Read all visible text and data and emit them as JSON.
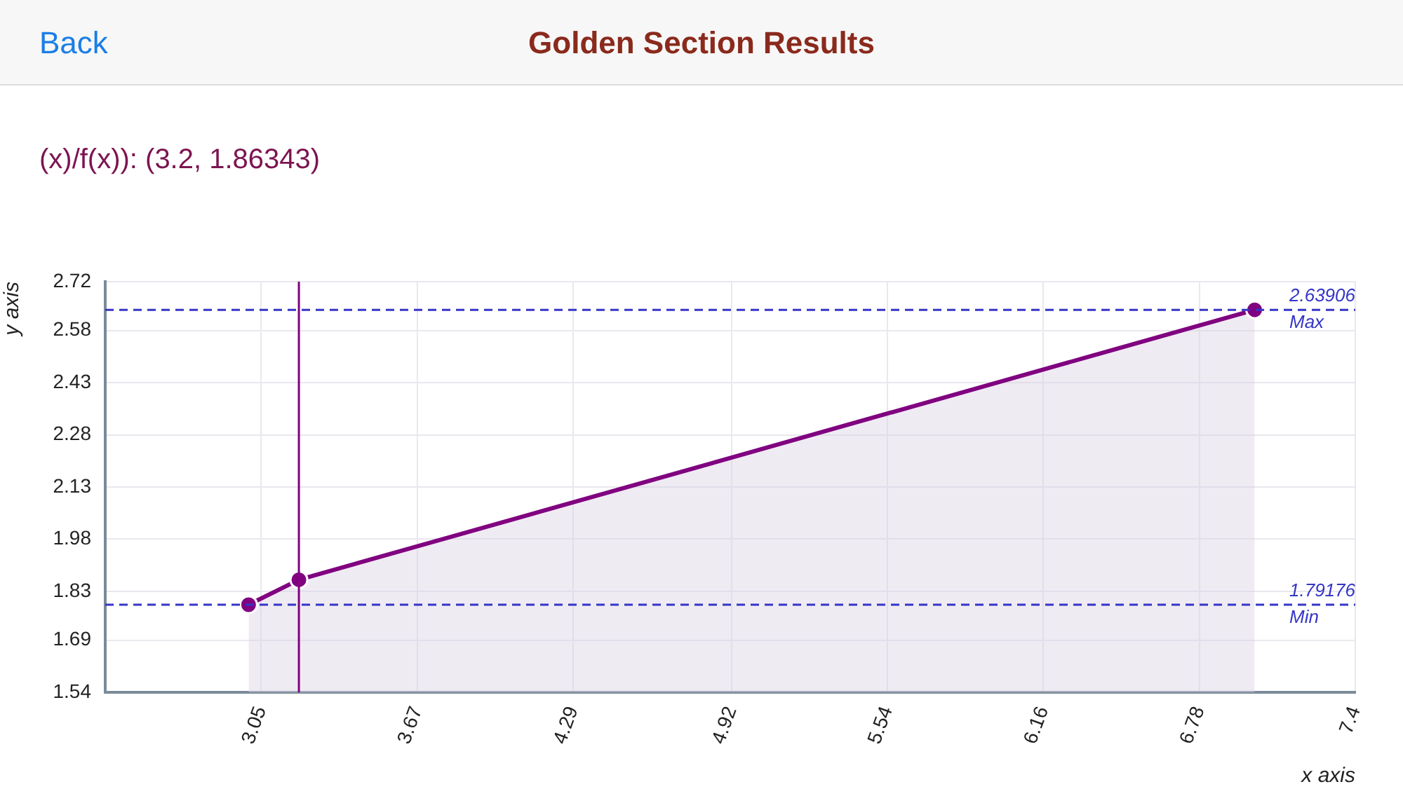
{
  "chart_data": {
    "type": "area",
    "title": "Golden Section Results",
    "subtitle": "(x)/f(x)): (3.2, 1.86343)",
    "annotations": [
      "Back",
      {
        "text": "2.63906",
        "y": 2.63906
      },
      {
        "text": "1.79176",
        "y": 1.79176
      }
    ],
    "xlabel": "x axis",
    "ylabel": "y axis",
    "x": [
      3.0,
      3.2,
      7.0
    ],
    "series": [
      {
        "color": "#800080",
        "values": [
          1.79176,
          1.86343,
          2.63906
        ]
      }
    ],
    "xlim": [
      2.43,
      7.4
    ],
    "xticks": [
      3.05,
      3.67,
      4.29,
      4.92,
      5.54,
      6.16,
      6.78,
      7.4
    ],
    "ylim": [
      1.54,
      2.72
    ],
    "yticks": [
      1.54,
      1.69,
      1.83,
      1.98,
      2.13,
      2.28,
      2.43,
      2.58,
      2.72
    ],
    "ref_lines": [
      {
        "axis": "y",
        "value": 2.63906,
        "label": "Max",
        "color": "#3535c8",
        "line_style": "dashed"
      },
      {
        "axis": "y",
        "value": 1.79176,
        "label": "Min",
        "color": "#3535c8",
        "line_style": "dashed"
      },
      {
        "axis": "x",
        "value": 3.2,
        "color": "#800080",
        "line_style": "solid"
      }
    ],
    "grid": true,
    "marker": "circle",
    "legend": false
  }
}
